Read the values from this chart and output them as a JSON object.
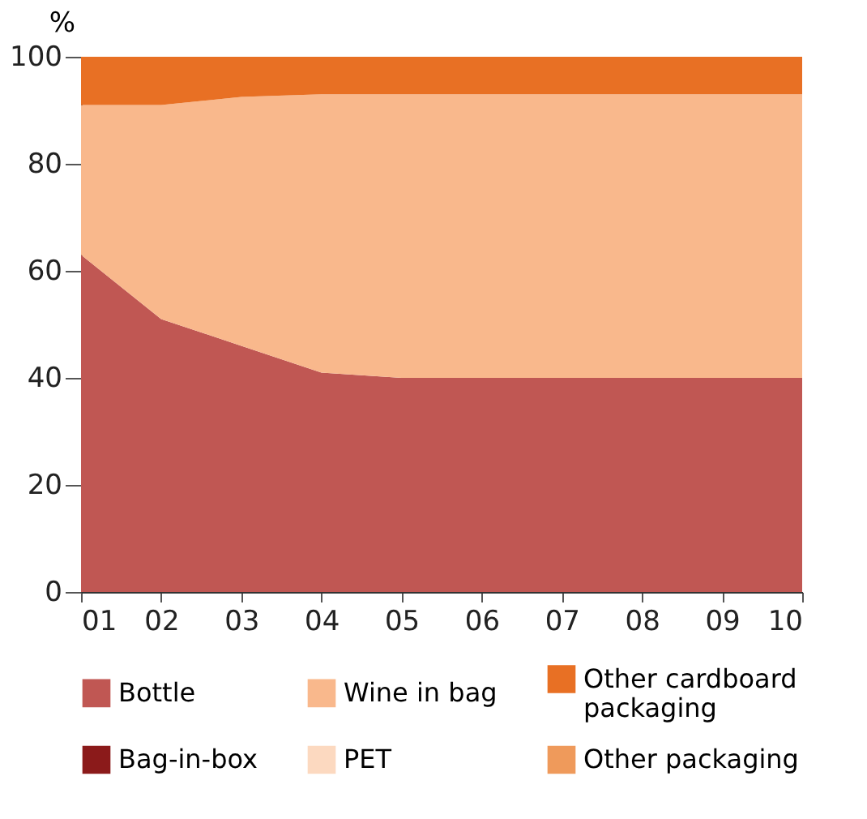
{
  "chart_data": {
    "type": "area",
    "stacked": true,
    "ylabel": "%",
    "categories": [
      "01",
      "02",
      "03",
      "04",
      "05",
      "06",
      "07",
      "08",
      "09",
      "10"
    ],
    "series": [
      {
        "name": "Bottle",
        "color": "#c05753",
        "values": [
          63,
          51,
          46,
          41,
          40,
          40,
          40,
          40,
          40,
          40
        ]
      },
      {
        "name": "Wine in bag",
        "color": "#f9b88c",
        "values": [
          28,
          40,
          46.5,
          52,
          53,
          53,
          53,
          53,
          53,
          53
        ]
      },
      {
        "name": "Other cardboard packaging",
        "color": "#e87024",
        "values": [
          9,
          9,
          7.5,
          7,
          7,
          7,
          7,
          7,
          7,
          7
        ]
      },
      {
        "name": "Bag-in-box",
        "color": "#8b1a1a",
        "values": [
          null,
          null,
          null,
          null,
          null,
          null,
          null,
          null,
          null,
          null
        ]
      },
      {
        "name": "PET",
        "color": "#fcd9c0",
        "values": [
          null,
          null,
          null,
          null,
          null,
          null,
          null,
          null,
          null,
          null
        ]
      },
      {
        "name": "Other packaging",
        "color": "#ef9a5b",
        "values": [
          null,
          null,
          null,
          null,
          null,
          null,
          null,
          null,
          null,
          null
        ]
      }
    ],
    "ylim": [
      0,
      100
    ],
    "yticks": [
      0,
      20,
      40,
      60,
      80,
      100
    ],
    "grid": false,
    "legend": "bottom"
  }
}
